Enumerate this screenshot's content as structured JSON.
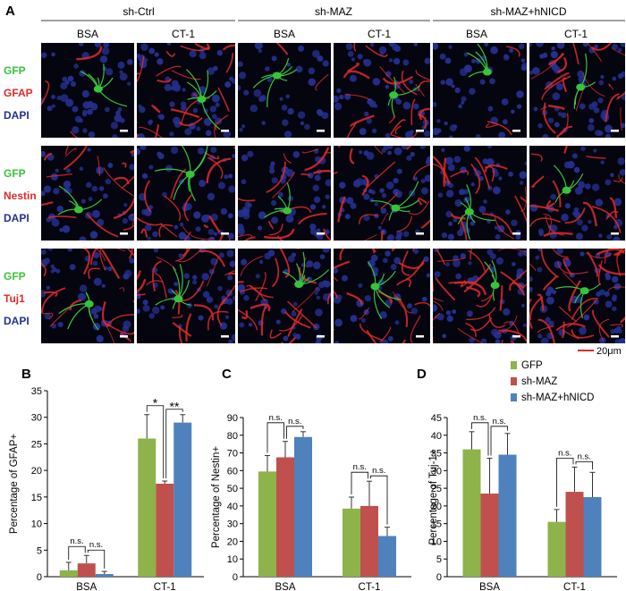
{
  "figure": {
    "panel_a_letter": "A",
    "groups": [
      "sh-Ctrl",
      "sh-MAZ",
      "sh-MAZ+hNICD"
    ],
    "conditions": [
      "BSA",
      "CT-1"
    ],
    "rows": [
      {
        "stain1": "GFP",
        "stain2": "GFAP",
        "stain3": "DAPI"
      },
      {
        "stain1": "GFP",
        "stain2": "Nestin",
        "stain3": "DAPI"
      },
      {
        "stain1": "GFP",
        "stain2": "Tuj1",
        "stain3": "DAPI"
      }
    ],
    "scale_bar_label": "20μm",
    "colors": {
      "gfp": "#38c43a",
      "stain": "#e02a2a",
      "dapi": "#25308f"
    }
  },
  "legend": [
    "GFP",
    "sh-MAZ",
    "sh-MAZ+hNICD"
  ],
  "series_colors": [
    "#8db34a",
    "#c0504d",
    "#4f81bd"
  ],
  "chart_data": [
    {
      "panel": "B",
      "type": "bar",
      "ylabel": "Percentage of GFAP+",
      "categories": [
        "BSA",
        "CT-1"
      ],
      "ylim": [
        0,
        35
      ],
      "yticks": [
        0,
        5,
        10,
        15,
        20,
        25,
        30,
        35
      ],
      "series": [
        {
          "name": "GFP",
          "values": [
            1.2,
            26
          ],
          "errors": [
            1.5,
            4.5
          ]
        },
        {
          "name": "sh-MAZ",
          "values": [
            2.5,
            17.5
          ],
          "errors": [
            1.5,
            0.5
          ]
        },
        {
          "name": "sh-MAZ+hNICD",
          "values": [
            0.5,
            29
          ],
          "errors": [
            0.5,
            1.5
          ]
        }
      ],
      "annotations": [
        {
          "cat": 0,
          "from": 0,
          "to": 1,
          "text": "n.s."
        },
        {
          "cat": 0,
          "from": 1,
          "to": 2,
          "text": "n.s."
        },
        {
          "cat": 1,
          "from": 0,
          "to": 1,
          "text": "*"
        },
        {
          "cat": 1,
          "from": 1,
          "to": 2,
          "text": "**"
        }
      ]
    },
    {
      "panel": "C",
      "type": "bar",
      "ylabel": "Percentage of Nestin+",
      "categories": [
        "BSA",
        "CT-1"
      ],
      "ylim": [
        0,
        90
      ],
      "yticks": [
        0,
        10,
        20,
        30,
        40,
        50,
        60,
        70,
        80,
        90
      ],
      "series": [
        {
          "name": "GFP",
          "values": [
            59.5,
            38.5
          ],
          "errors": [
            9,
            6.5
          ]
        },
        {
          "name": "sh-MAZ",
          "values": [
            67.5,
            40
          ],
          "errors": [
            9,
            14
          ]
        },
        {
          "name": "sh-MAZ+hNICD",
          "values": [
            79,
            23
          ],
          "errors": [
            3,
            5
          ]
        }
      ],
      "annotations": [
        {
          "cat": 0,
          "from": 0,
          "to": 1,
          "text": "n.s."
        },
        {
          "cat": 0,
          "from": 1,
          "to": 2,
          "text": "n.s."
        },
        {
          "cat": 1,
          "from": 0,
          "to": 1,
          "text": "n.s."
        },
        {
          "cat": 1,
          "from": 1,
          "to": 2,
          "text": "n.s."
        }
      ]
    },
    {
      "panel": "D",
      "type": "bar",
      "ylabel": "Percentage of Tuj-1+",
      "categories": [
        "BSA",
        "CT-1"
      ],
      "ylim": [
        0,
        45
      ],
      "yticks": [
        0,
        5,
        10,
        15,
        20,
        25,
        30,
        35,
        40,
        45
      ],
      "series": [
        {
          "name": "GFP",
          "values": [
            36,
            15.5
          ],
          "errors": [
            5,
            3.5
          ]
        },
        {
          "name": "sh-MAZ",
          "values": [
            23.5,
            24
          ],
          "errors": [
            10,
            7
          ]
        },
        {
          "name": "sh-MAZ+hNICD",
          "values": [
            34.5,
            22.5
          ],
          "errors": [
            6,
            7
          ]
        }
      ],
      "annotations": [
        {
          "cat": 0,
          "from": 0,
          "to": 1,
          "text": "n.s."
        },
        {
          "cat": 0,
          "from": 1,
          "to": 2,
          "text": "n.s."
        },
        {
          "cat": 1,
          "from": 0,
          "to": 1,
          "text": "n.s."
        },
        {
          "cat": 1,
          "from": 1,
          "to": 2,
          "text": "n.s."
        }
      ]
    }
  ]
}
